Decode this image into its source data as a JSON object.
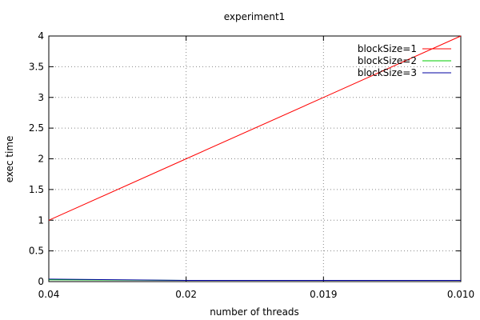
{
  "chart_data": {
    "type": "line",
    "title": "experiment1",
    "xlabel": "number of threads",
    "ylabel": "exec time",
    "categories": [
      "0.04",
      "0.02",
      "0.019",
      "0.010"
    ],
    "y_ticks": [
      "0",
      "0.5",
      "1",
      "1.5",
      "2",
      "2.5",
      "3",
      "3.5",
      "4"
    ],
    "ylim": [
      0,
      4
    ],
    "grid": true,
    "legend_position": "top-right",
    "series": [
      {
        "name": "blockSize=1",
        "color": "#ff0000",
        "values": [
          1.0,
          2.0,
          3.0,
          4.0
        ]
      },
      {
        "name": "blockSize=2",
        "color": "#00cc00",
        "values": [
          0.03,
          0.02,
          0.02,
          0.02
        ]
      },
      {
        "name": "blockSize=3",
        "color": "#0000a0",
        "values": [
          0.04,
          0.02,
          0.02,
          0.02
        ]
      }
    ]
  }
}
